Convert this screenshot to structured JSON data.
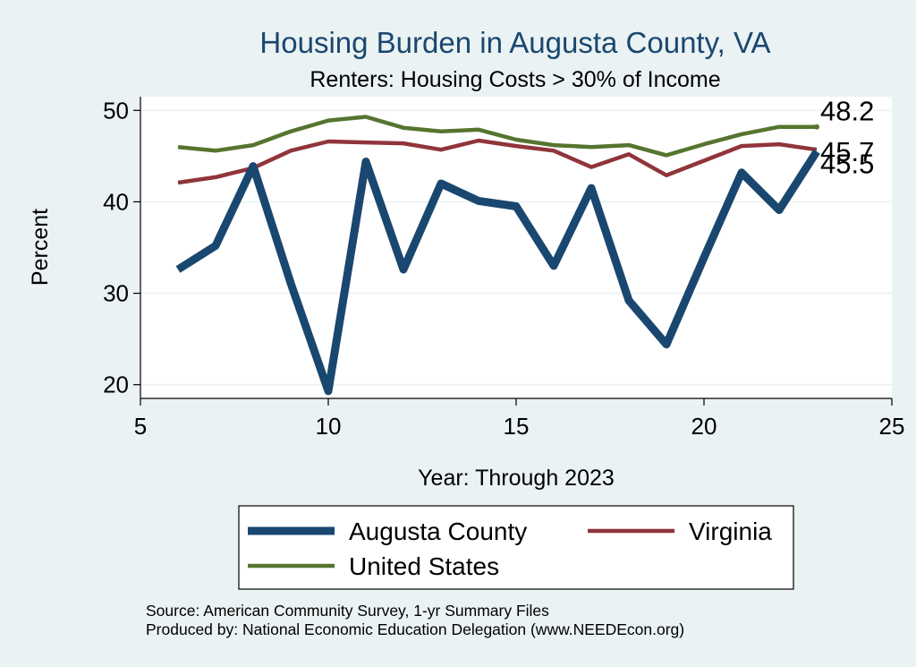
{
  "chart_data": {
    "type": "line",
    "title": "Housing Burden in Augusta County, VA",
    "subtitle": "Renters: Housing Costs > 30% of Income",
    "xlabel": "Year: Through 2023",
    "ylabel": "Percent",
    "xlim": [
      5,
      25
    ],
    "ylim": [
      18.5,
      51.5
    ],
    "x_ticks": [
      5,
      10,
      15,
      20,
      25
    ],
    "y_ticks": [
      20,
      30,
      40,
      50
    ],
    "grid": true,
    "legend_position": "bottom",
    "x": [
      6,
      7,
      8,
      9,
      10,
      11,
      12,
      13,
      14,
      15,
      16,
      17,
      18,
      19,
      20,
      21,
      22,
      23
    ],
    "series": [
      {
        "name": "Augusta County",
        "color": "#1A476F",
        "values": [
          32.6,
          35.2,
          43.9,
          31.1,
          19.3,
          44.4,
          32.6,
          42.0,
          40.1,
          39.5,
          33.0,
          41.5,
          29.2,
          24.4,
          33.9,
          43.2,
          39.1,
          45.5
        ]
      },
      {
        "name": "Virginia",
        "color": "#90353B",
        "values": [
          42.1,
          42.7,
          43.7,
          45.6,
          46.6,
          46.5,
          46.4,
          45.7,
          46.7,
          46.1,
          45.6,
          43.8,
          45.2,
          42.9,
          44.5,
          46.1,
          46.3,
          45.7
        ]
      },
      {
        "name": "United States",
        "color": "#55752F",
        "values": [
          46.0,
          45.6,
          46.2,
          47.7,
          48.9,
          49.3,
          48.1,
          47.7,
          47.9,
          46.8,
          46.2,
          46.0,
          46.2,
          45.1,
          46.3,
          47.4,
          48.2,
          48.2
        ]
      }
    ],
    "end_labels": [
      {
        "series": "United States",
        "text": "48.2"
      },
      {
        "series": "Virginia",
        "text": "45.7"
      },
      {
        "series": "Augusta County",
        "text": "45.5"
      }
    ],
    "notes": [
      "Source: American Community Survey, 1-yr Summary Files",
      "Produced by: National Economic Education Delegation (www.NEEDEcon.org)"
    ]
  }
}
